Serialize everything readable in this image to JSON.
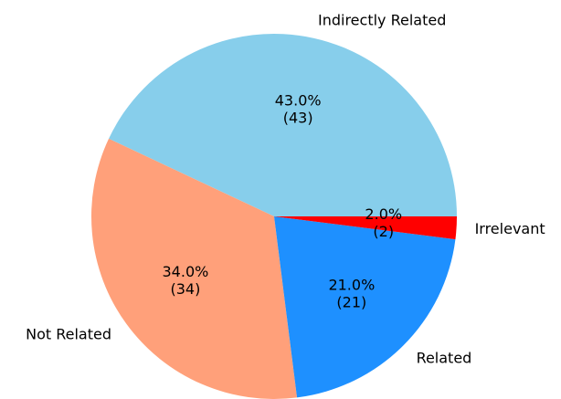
{
  "chart_data": {
    "type": "pie",
    "categories": [
      "Indirectly Related",
      "Not Related",
      "Related",
      "Irrelevant"
    ],
    "values": [
      43,
      34,
      21,
      2
    ],
    "value_labels": [
      "43.0%\n(43)",
      "34.0%\n(34)",
      "21.0%\n(21)",
      "2.0%\n(2)"
    ],
    "colors": [
      "#87ceeb",
      "#ffa07a",
      "#1e90ff",
      "#ff0000"
    ]
  }
}
